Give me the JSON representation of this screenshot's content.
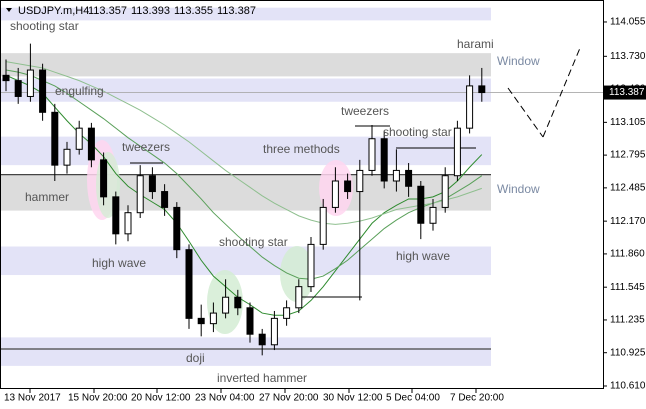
{
  "chart_data": {
    "type": "candlestick",
    "symbol": "USDJPY.m,H4",
    "quote": [
      113.357,
      113.393,
      113.355,
      113.387
    ],
    "last_price": 113.387,
    "ylim": [
      110.572,
      114.244
    ],
    "yticks": [
      114.055,
      {
        "value": 113.73,
        "label": "113.730"
      },
      {
        "value": 113.42,
        "label": "113.420"
      },
      113.105,
      112.795,
      112.485,
      {
        "value": 112.17,
        "label": "112.170"
      },
      {
        "value": 111.86,
        "label": "111.860"
      },
      111.545,
      111.235,
      110.925,
      {
        "value": 110.61,
        "label": "110.610"
      }
    ],
    "x_labels": [
      "13 Nov 2017",
      "15 Nov 20:00",
      "20 Nov 12:00",
      "23 Nov 04:00",
      "27 Nov 20:00",
      "30 Nov 12:00",
      "5 Dec 04:00",
      "7 Dec 20:00"
    ],
    "candles": [
      [
        113.55,
        113.7,
        113.4,
        113.5
      ],
      [
        113.5,
        113.62,
        113.28,
        113.35
      ],
      [
        113.35,
        113.85,
        113.3,
        113.6
      ],
      [
        113.6,
        113.66,
        113.12,
        113.2
      ],
      [
        113.2,
        113.28,
        112.55,
        112.7
      ],
      [
        112.7,
        112.92,
        112.62,
        112.85
      ],
      [
        112.85,
        113.12,
        112.8,
        113.05
      ],
      [
        113.05,
        113.1,
        112.68,
        112.75
      ],
      [
        112.75,
        112.82,
        112.32,
        112.4
      ],
      [
        112.4,
        112.45,
        111.95,
        112.05
      ],
      [
        112.05,
        112.32,
        111.98,
        112.25
      ],
      [
        112.25,
        112.7,
        112.2,
        112.6
      ],
      [
        112.6,
        112.68,
        112.38,
        112.45
      ],
      [
        112.45,
        112.52,
        112.22,
        112.3
      ],
      [
        112.3,
        112.35,
        111.82,
        111.9
      ],
      [
        111.9,
        111.95,
        111.15,
        111.25
      ],
      [
        111.25,
        111.38,
        111.08,
        111.2
      ],
      [
        111.2,
        111.4,
        111.12,
        111.3
      ],
      [
        111.3,
        111.62,
        111.25,
        111.45
      ],
      [
        111.45,
        111.52,
        111.28,
        111.35
      ],
      [
        111.35,
        111.4,
        111.02,
        111.1
      ],
      [
        111.1,
        111.15,
        110.9,
        111.0
      ],
      [
        111.0,
        111.32,
        110.95,
        111.25
      ],
      [
        111.25,
        111.42,
        111.18,
        111.35
      ],
      [
        111.35,
        111.62,
        111.3,
        111.55
      ],
      [
        111.55,
        112.02,
        111.5,
        111.95
      ],
      [
        111.95,
        112.38,
        111.9,
        112.3
      ],
      [
        112.3,
        112.68,
        112.25,
        112.55
      ],
      [
        112.55,
        112.62,
        112.38,
        112.45
      ],
      [
        112.45,
        112.75,
        111.42,
        112.65
      ],
      [
        112.65,
        113.08,
        112.6,
        112.95
      ],
      [
        112.95,
        113.02,
        112.48,
        112.55
      ],
      [
        112.55,
        112.85,
        112.45,
        112.65
      ],
      [
        112.65,
        112.72,
        112.4,
        112.5
      ],
      [
        112.5,
        112.55,
        112.0,
        112.15
      ],
      [
        112.15,
        112.38,
        112.08,
        112.3
      ],
      [
        112.3,
        112.68,
        112.25,
        112.6
      ],
      [
        112.6,
        113.12,
        112.55,
        113.05
      ],
      [
        113.05,
        113.55,
        113.0,
        113.45
      ],
      [
        113.45,
        113.62,
        113.3,
        113.387
      ]
    ],
    "moving_averages": [
      {
        "color": "#2e8b2e",
        "values": [
          113.55,
          113.5,
          113.45,
          113.38,
          113.25,
          113.12,
          113.0,
          112.9,
          112.78,
          112.62,
          112.5,
          112.42,
          112.35,
          112.28,
          112.15,
          111.98,
          111.8,
          111.65,
          111.55,
          111.45,
          111.38,
          111.3,
          111.28,
          111.28,
          111.32,
          111.42,
          111.55,
          111.7,
          111.85,
          112.0,
          112.15,
          112.25,
          112.32,
          112.38,
          112.38,
          112.4,
          112.45,
          112.55,
          112.68,
          112.8
        ]
      },
      {
        "color": "#5aa05a",
        "values": [
          113.6,
          113.58,
          113.55,
          113.5,
          113.45,
          113.38,
          113.3,
          113.22,
          113.14,
          113.05,
          112.96,
          112.88,
          112.8,
          112.72,
          112.62,
          112.5,
          112.38,
          112.25,
          112.14,
          112.03,
          111.93,
          111.83,
          111.75,
          111.68,
          111.63,
          111.62,
          111.65,
          111.72,
          111.8,
          111.9,
          112.0,
          112.1,
          112.18,
          112.25,
          112.3,
          112.34,
          112.38,
          112.45,
          112.52,
          112.6
        ]
      },
      {
        "color": "#8fbf8f",
        "values": [
          113.68,
          113.66,
          113.64,
          113.62,
          113.58,
          113.54,
          113.5,
          113.45,
          113.4,
          113.34,
          113.28,
          113.22,
          113.15,
          113.08,
          113.0,
          112.92,
          112.83,
          112.74,
          112.65,
          112.57,
          112.49,
          112.41,
          112.34,
          112.28,
          112.22,
          112.18,
          112.15,
          112.14,
          112.15,
          112.17,
          112.2,
          112.24,
          112.28,
          112.3,
          112.32,
          112.34,
          112.37,
          112.4,
          112.44,
          112.48
        ]
      }
    ],
    "zones": [
      {
        "range": [
          114.07,
          114.19
        ],
        "color": "#e3e3f7"
      },
      {
        "range": [
          113.54,
          113.76
        ],
        "color": "#dcdcdc"
      },
      {
        "range": [
          113.3,
          113.52
        ],
        "color": "#e3e3f7"
      },
      {
        "range": [
          112.7,
          112.97
        ],
        "color": "#e3e3f7"
      },
      {
        "range": [
          112.27,
          112.61
        ],
        "color": "#dcdcdc"
      },
      {
        "range": [
          111.66,
          111.93
        ],
        "color": "#e3e3f7"
      },
      {
        "range": [
          110.8,
          111.07
        ],
        "color": "#e3e3f7"
      }
    ],
    "levels": [
      112.61,
      110.96
    ],
    "annotations": [
      "shooting star",
      "engulfing",
      "hammer",
      "tweezers",
      "high wave",
      "three methods",
      "shooting star",
      "tweezers",
      "shooting star",
      "doji",
      "inverted hammer",
      "high wave",
      "harami",
      "Window",
      "Window"
    ]
  }
}
